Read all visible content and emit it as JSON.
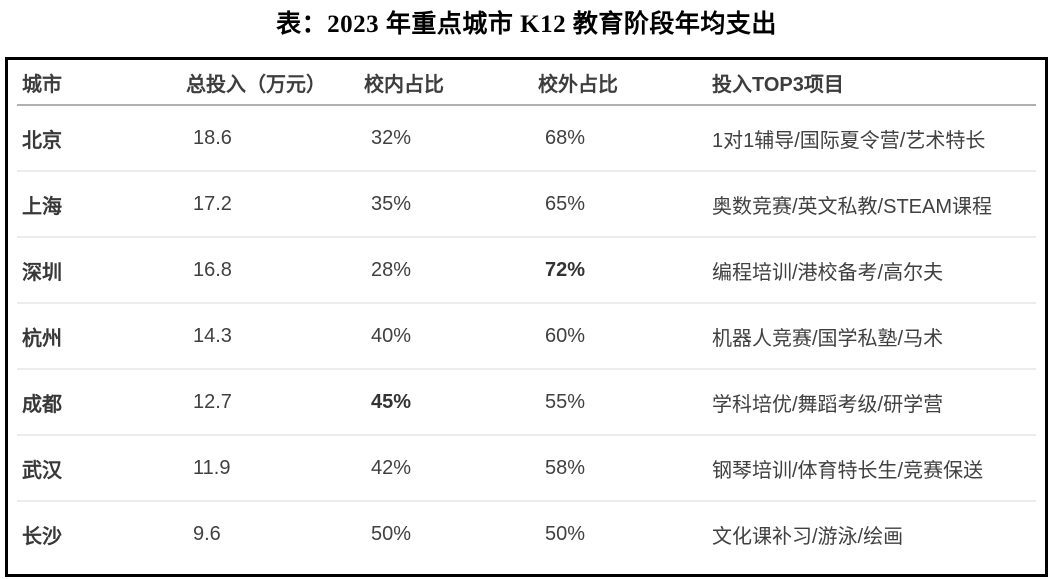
{
  "title": "表：2023 年重点城市 K12 教育阶段年均支出",
  "table": {
    "columns": [
      "城市",
      "总投入（万元）",
      "校内占比",
      "校外占比",
      "投入TOP3项目"
    ],
    "rows": [
      {
        "city": "北京",
        "total": "18.6",
        "in_pct": "32%",
        "out_pct": "68%",
        "top3": "1对1辅导/国际夏令营/艺术特长",
        "bold": []
      },
      {
        "city": "上海",
        "total": "17.2",
        "in_pct": "35%",
        "out_pct": "65%",
        "top3": "奥数竞赛/英文私教/STEAM课程",
        "bold": []
      },
      {
        "city": "深圳",
        "total": "16.8",
        "in_pct": "28%",
        "out_pct": "72%",
        "top3": "编程培训/港校备考/高尔夫",
        "bold": [
          "out_pct"
        ]
      },
      {
        "city": "杭州",
        "total": "14.3",
        "in_pct": "40%",
        "out_pct": "60%",
        "top3": "机器人竞赛/国学私塾/马术",
        "bold": []
      },
      {
        "city": "成都",
        "total": "12.7",
        "in_pct": "45%",
        "out_pct": "55%",
        "top3": "学科培优/舞蹈考级/研学营",
        "bold": [
          "in_pct"
        ]
      },
      {
        "city": "武汉",
        "total": "11.9",
        "in_pct": "42%",
        "out_pct": "58%",
        "top3": "钢琴培训/体育特长生/竞赛保送",
        "bold": []
      },
      {
        "city": "长沙",
        "total": "9.6",
        "in_pct": "50%",
        "out_pct": "50%",
        "top3": "文化课补习/游泳/绘画",
        "bold": []
      }
    ]
  },
  "colors": {
    "table_border": "#000000",
    "header_divider": "#b0b0b0",
    "row_divider": "#ececec",
    "text": "#404040",
    "title_text": "#000000"
  },
  "chart_data": {
    "type": "table",
    "title": "表：2023 年重点城市 K12 教育阶段年均支出",
    "columns": [
      "城市",
      "总投入（万元）",
      "校内占比",
      "校外占比",
      "投入TOP3项目"
    ],
    "rows": [
      [
        "北京",
        18.6,
        "32%",
        "68%",
        "1对1辅导/国际夏令营/艺术特长"
      ],
      [
        "上海",
        17.2,
        "35%",
        "65%",
        "奥数竞赛/英文私教/STEAM课程"
      ],
      [
        "深圳",
        16.8,
        "28%",
        "72%",
        "编程培训/港校备考/高尔夫"
      ],
      [
        "杭州",
        14.3,
        "40%",
        "60%",
        "机器人竞赛/国学私塾/马术"
      ],
      [
        "成都",
        12.7,
        "45%",
        "55%",
        "学科培优/舞蹈考级/研学营"
      ],
      [
        "武汉",
        11.9,
        "42%",
        "58%",
        "钢琴培训/体育特长生/竞赛保送"
      ],
      [
        "长沙",
        9.6,
        "50%",
        "50%",
        "文化课补习/游泳/绘画"
      ]
    ]
  }
}
